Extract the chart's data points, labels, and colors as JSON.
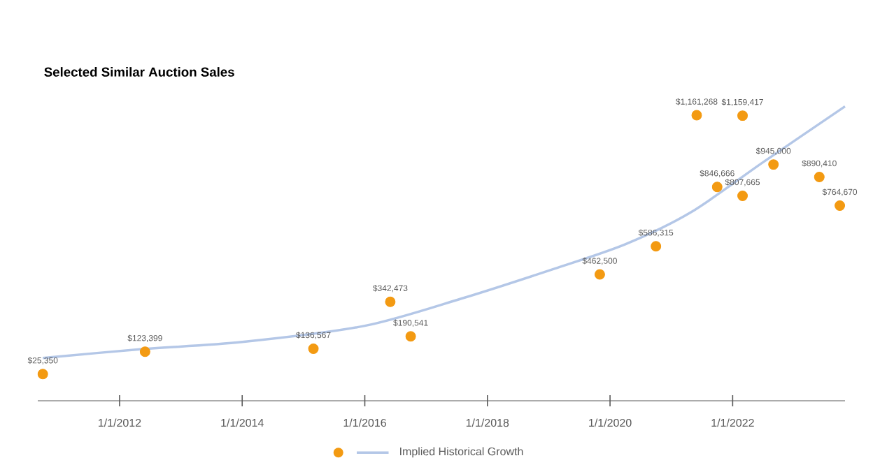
{
  "chart_data": {
    "type": "scatter",
    "title": "Selected Similar Auction Sales",
    "xlim": [
      "2010-09",
      "2023-11"
    ],
    "xticks": [
      {
        "value": "2012-01-01",
        "label": "1/1/2012"
      },
      {
        "value": "2014-01-01",
        "label": "1/1/2014"
      },
      {
        "value": "2016-01-01",
        "label": "1/1/2016"
      },
      {
        "value": "2018-01-01",
        "label": "1/1/2018"
      },
      {
        "value": "2020-01-01",
        "label": "1/1/2020"
      },
      {
        "value": "2022-01-01",
        "label": "1/1/2022"
      }
    ],
    "tick_labels": "x",
    "grid": false,
    "legend": "bottom",
    "series": [
      {
        "marker": "circle",
        "color": "#f39a12",
        "x": [
          "2010-10",
          "2012-06",
          "2015-03",
          "2016-06",
          "2016-10",
          "2019-11",
          "2020-10",
          "2021-06",
          "2021-10",
          "2022-03",
          "2022-03",
          "2022-09",
          "2023-06",
          "2023-10"
        ],
        "values": [
          25350,
          123399,
          136567,
          342473,
          190541,
          462500,
          586315,
          1161268,
          846666,
          1159417,
          807665,
          945000,
          890410,
          764670
        ],
        "value_labels": [
          "$25,350",
          "$123,399",
          "$136,567",
          "$342,473",
          "$190,541",
          "$462,500",
          "$586,315",
          "$1,161,268",
          "$846,666",
          "$1,159,417",
          "$807,665",
          "$945,000",
          "$890,410",
          "$764,670"
        ]
      },
      {
        "type": "line",
        "marker": "none",
        "line_style": "solid",
        "name": "Implied Historical Growth",
        "color": "#b4c7e7",
        "x": [
          "2010-10",
          "2012-05",
          "2014-01",
          "2016-01",
          "2017-08",
          "2019-02",
          "2020-04",
          "2021-05",
          "2022-07",
          "2023-11"
        ],
        "values": [
          96000,
          134000,
          166000,
          237000,
          357000,
          487000,
          595000,
          737000,
          955000,
          1200000
        ]
      }
    ]
  }
}
